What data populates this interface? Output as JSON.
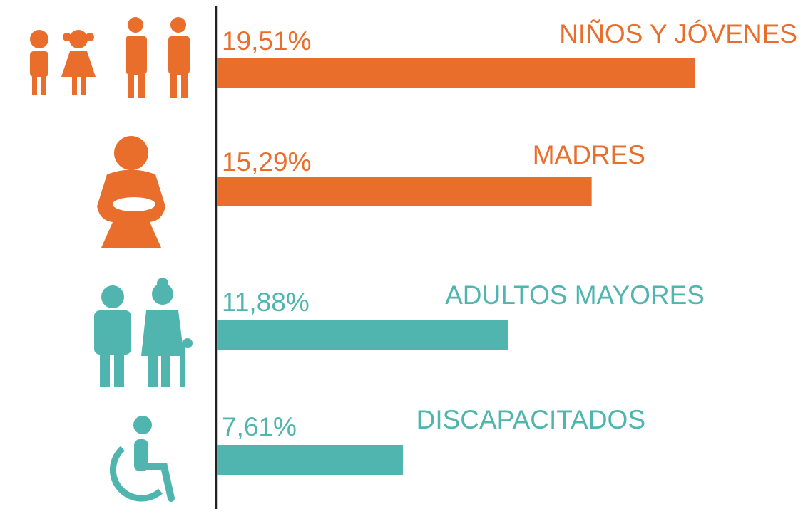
{
  "chart_data": {
    "type": "bar",
    "orientation": "horizontal",
    "categories": [
      "NIÑOS Y JÓVENES",
      "MADRES",
      "ADULTOS MAYORES",
      "DISCAPACITADOS"
    ],
    "values": [
      19.51,
      15.29,
      11.88,
      7.61
    ],
    "value_labels": [
      "19,51%",
      "15,29%",
      "11,88%",
      "7,61%"
    ],
    "colors": [
      "#e96d2b",
      "#e96d2b",
      "#4fb5ae",
      "#4fb5ae"
    ]
  }
}
